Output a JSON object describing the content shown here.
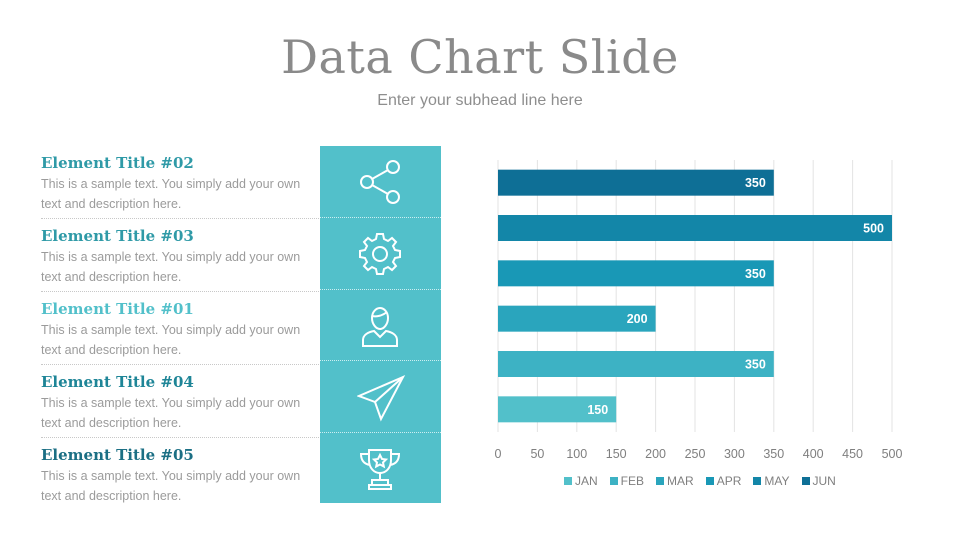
{
  "title": "Data Chart Slide",
  "subtitle": "Enter your subhead line here",
  "items": [
    {
      "title": "Element Title #02",
      "text": "This is a sample text. You simply add your own text and description here.",
      "color": "#2f9aa7",
      "icon": "share-icon"
    },
    {
      "title": "Element Title #03",
      "text": "This is a sample text. You simply add your own text and description here.",
      "color": "#2f9aa7",
      "icon": "gear-icon"
    },
    {
      "title": "Element Title #01",
      "text": "This is a sample text. You simply add your own text and description here.",
      "color": "#52c0ca",
      "icon": "user-icon"
    },
    {
      "title": "Element Title #04",
      "text": "This is a sample text. You simply add your own text and description here.",
      "color": "#1e8597",
      "icon": "paper-plane-icon"
    },
    {
      "title": "Element Title #05",
      "text": "This is a sample text. You simply add your own text and description here.",
      "color": "#1b6f84",
      "icon": "trophy-icon"
    }
  ],
  "chart_data": {
    "type": "bar",
    "orientation": "horizontal",
    "series": [
      {
        "name": "JUN",
        "value": 350,
        "color": "#0e6f96"
      },
      {
        "name": "MAY",
        "value": 500,
        "color": "#1386a8"
      },
      {
        "name": "APR",
        "value": 350,
        "color": "#1998b6"
      },
      {
        "name": "MAR",
        "value": 200,
        "color": "#2aa5bd"
      },
      {
        "name": "FEB",
        "value": 350,
        "color": "#3db2c4"
      },
      {
        "name": "JAN",
        "value": 150,
        "color": "#52c0ca"
      }
    ],
    "xlim": [
      0,
      500
    ],
    "xticks": [
      0,
      50,
      100,
      150,
      200,
      250,
      300,
      350,
      400,
      450,
      500
    ],
    "grid": true,
    "legend": [
      "JAN",
      "FEB",
      "MAR",
      "APR",
      "MAY",
      "JUN"
    ],
    "legend_position": "bottom"
  }
}
